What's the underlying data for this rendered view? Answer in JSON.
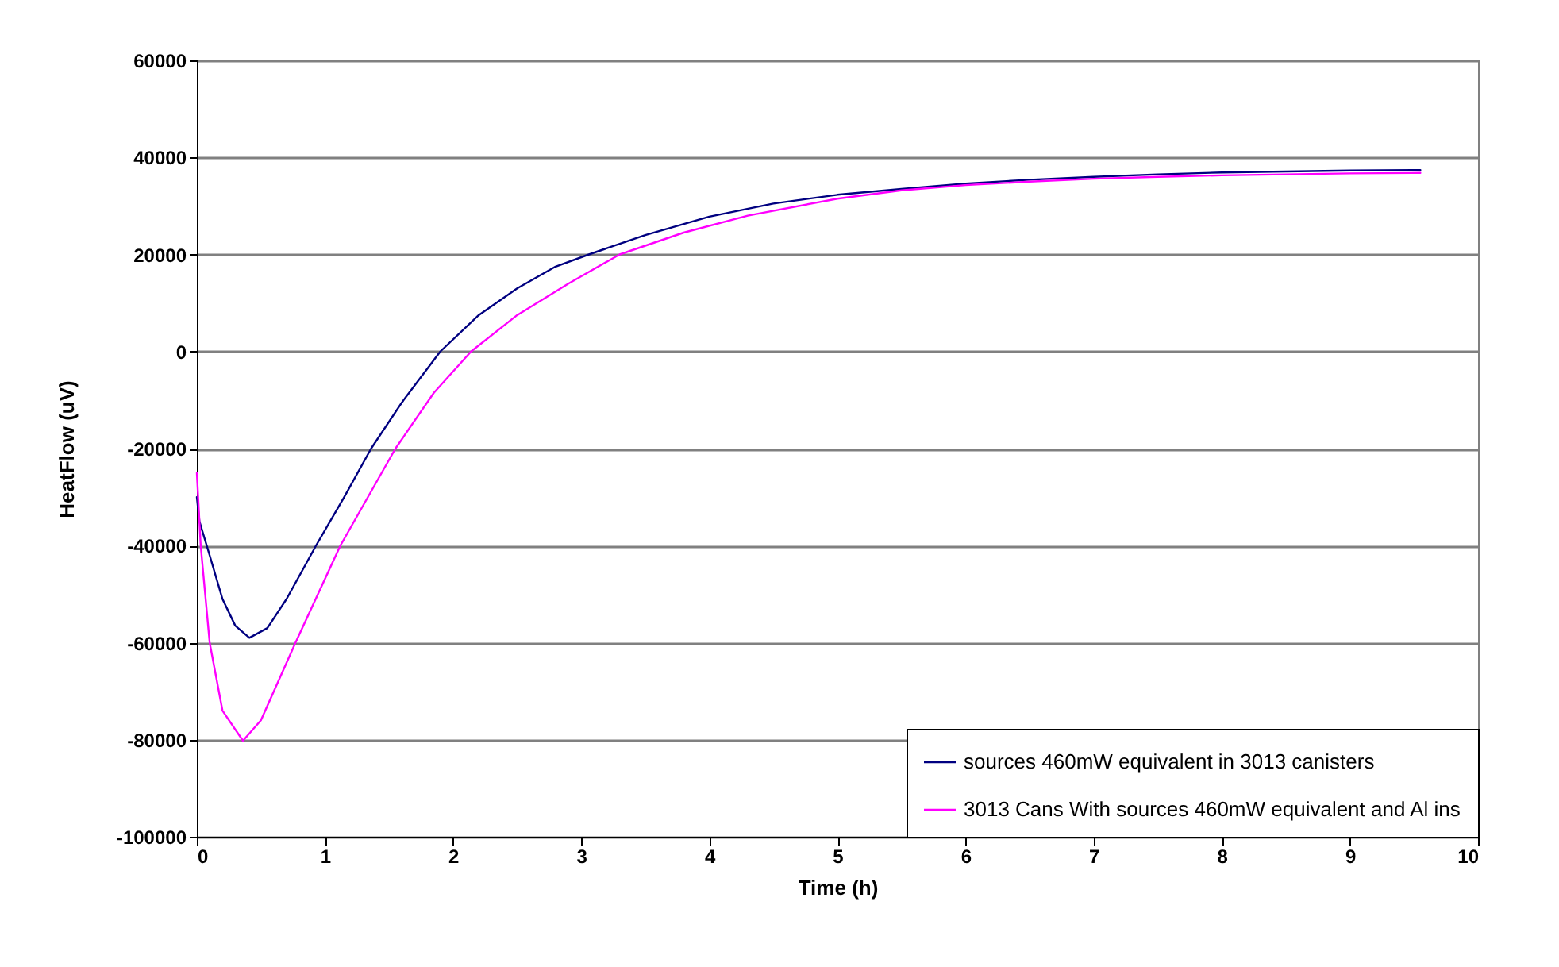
{
  "chart_data": {
    "type": "line",
    "xlabel": "Time (h)",
    "ylabel": "HeatFlow (uV)",
    "xlim": [
      0,
      10
    ],
    "xticks": [
      0,
      1,
      2,
      3,
      4,
      5,
      6,
      7,
      8,
      9,
      10
    ],
    "ylim": [
      -100000,
      60000
    ],
    "yticks": [
      -100000,
      -80000,
      -60000,
      -40000,
      -20000,
      0,
      20000,
      40000,
      60000
    ],
    "grid": "y",
    "legend": "bottom right",
    "marker": "none",
    "line_style": "solid",
    "series": [
      {
        "name": "sources 460mW equivalent in 3013 canisters",
        "color": "#000080",
        "x": [
          0,
          0.02,
          0.1,
          0.2,
          0.3,
          0.41,
          0.55,
          0.7,
          0.93,
          1.15,
          1.36,
          1.6,
          1.9,
          2.2,
          2.5,
          2.8,
          3.06,
          3.5,
          4,
          4.5,
          5,
          5.5,
          6,
          6.5,
          7,
          7.5,
          8,
          8.5,
          9,
          9.55
        ],
        "values": [
          -30000,
          -35000,
          -42000,
          -51000,
          -56500,
          -59000,
          -57000,
          -51000,
          -40000,
          -30000,
          -20000,
          -10500,
          0,
          7500,
          13000,
          17500,
          20000,
          24000,
          27800,
          30500,
          32300,
          33500,
          34600,
          35400,
          36000,
          36500,
          36900,
          37100,
          37300,
          37400
        ]
      },
      {
        "name": "3013 Cans With sources 460mW equivalent and Al ins",
        "color": "#ff00ff",
        "x": [
          0,
          0.03,
          0.1,
          0.2,
          0.36,
          0.5,
          0.77,
          1.12,
          1.55,
          1.85,
          2.14,
          2.5,
          2.9,
          3.3,
          3.8,
          4.3,
          5,
          5.5,
          6,
          6.5,
          7,
          7.5,
          8,
          8.5,
          9,
          9.55
        ],
        "values": [
          -25000,
          -40000,
          -60000,
          -74000,
          -80200,
          -76000,
          -60000,
          -40000,
          -20000,
          -8500,
          0,
          7500,
          14000,
          20000,
          24500,
          28000,
          31500,
          33200,
          34300,
          35000,
          35600,
          36000,
          36300,
          36500,
          36700,
          36800
        ]
      }
    ]
  }
}
